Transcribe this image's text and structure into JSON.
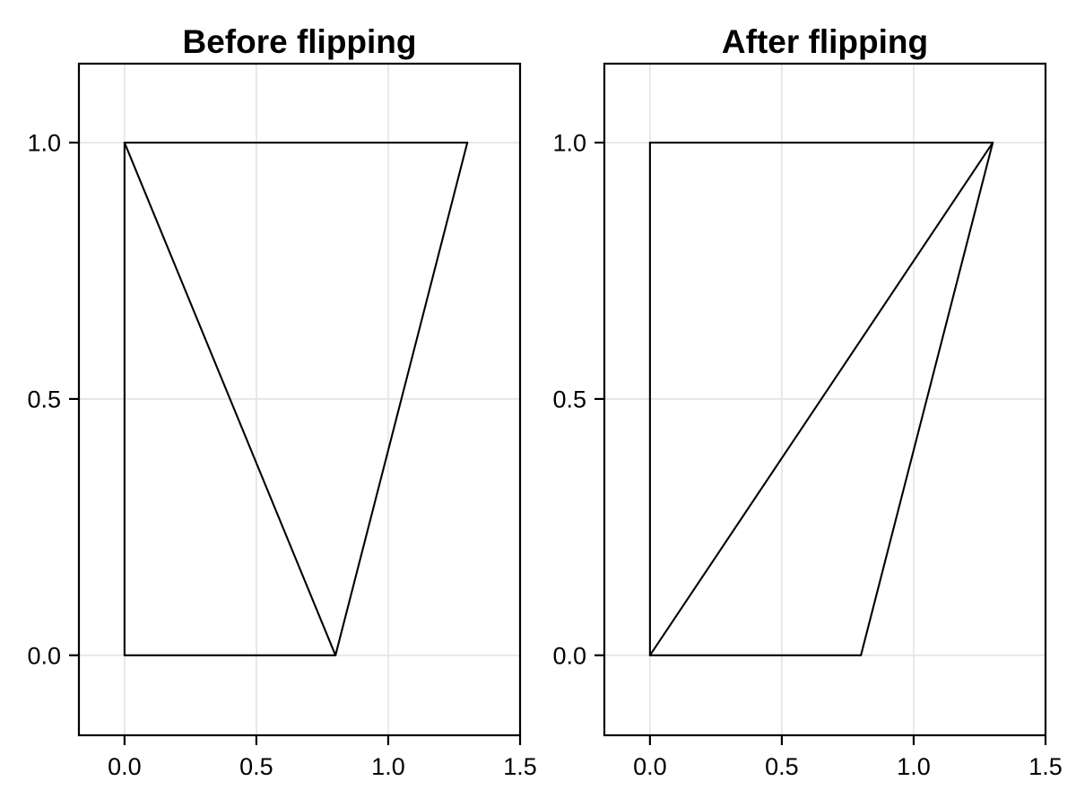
{
  "colors": {
    "background": "#FFFFFF",
    "panel_background": "#FFFFFF",
    "grid": "#E6E6E6",
    "border": "#000000",
    "line": "#000000",
    "text": "#000000"
  },
  "chart_data": [
    {
      "type": "line",
      "title": "Before flipping",
      "xlabel": "",
      "ylabel": "",
      "xlim": [
        -0.173,
        1.5
      ],
      "ylim": [
        -0.156,
        1.154
      ],
      "grid": true,
      "legend": false,
      "x_ticks": [
        0.0,
        0.5,
        1.0,
        1.5
      ],
      "x_tick_labels": [
        "0.0",
        "0.5",
        "1.0",
        "1.5"
      ],
      "y_ticks": [
        0.0,
        0.5,
        1.0
      ],
      "y_tick_labels": [
        "0.0",
        "0.5",
        "1.0"
      ],
      "quad_vertices": [
        [
          0,
          0
        ],
        [
          0,
          1
        ],
        [
          1.3,
          1
        ],
        [
          0.8,
          0
        ]
      ],
      "flip_diagonal": [
        [
          0,
          1
        ],
        [
          0.8,
          0
        ]
      ],
      "segments": [
        {
          "name": "left-edge",
          "points": [
            0,
            0,
            0,
            1
          ]
        },
        {
          "name": "top-edge",
          "points": [
            0,
            1,
            1.3,
            1
          ]
        },
        {
          "name": "bottom-edge",
          "points": [
            0,
            0,
            0.8,
            0
          ]
        },
        {
          "name": "diagonal-before",
          "points": [
            0,
            1,
            0.8,
            0
          ]
        },
        {
          "name": "right-edge",
          "points": [
            0.8,
            0,
            1.3,
            1
          ]
        }
      ]
    },
    {
      "type": "line",
      "title": "After flipping",
      "xlabel": "",
      "ylabel": "",
      "xlim": [
        -0.173,
        1.5
      ],
      "ylim": [
        -0.156,
        1.154
      ],
      "grid": true,
      "legend": false,
      "x_ticks": [
        0.0,
        0.5,
        1.0,
        1.5
      ],
      "x_tick_labels": [
        "0.0",
        "0.5",
        "1.0",
        "1.5"
      ],
      "y_ticks": [
        0.0,
        0.5,
        1.0
      ],
      "y_tick_labels": [
        "0.0",
        "0.5",
        "1.0"
      ],
      "quad_vertices": [
        [
          0,
          0
        ],
        [
          0,
          1
        ],
        [
          1.3,
          1
        ],
        [
          0.8,
          0
        ]
      ],
      "flip_diagonal": [
        [
          0,
          0
        ],
        [
          1.3,
          1
        ]
      ],
      "segments": [
        {
          "name": "left-edge",
          "points": [
            0,
            0,
            0,
            1
          ]
        },
        {
          "name": "top-edge",
          "points": [
            0,
            1,
            1.3,
            1
          ]
        },
        {
          "name": "bottom-edge",
          "points": [
            0,
            0,
            0.8,
            0
          ]
        },
        {
          "name": "diagonal-after",
          "points": [
            0,
            0,
            1.3,
            1
          ]
        },
        {
          "name": "right-edge",
          "points": [
            0.8,
            0,
            1.3,
            1
          ]
        }
      ]
    }
  ]
}
